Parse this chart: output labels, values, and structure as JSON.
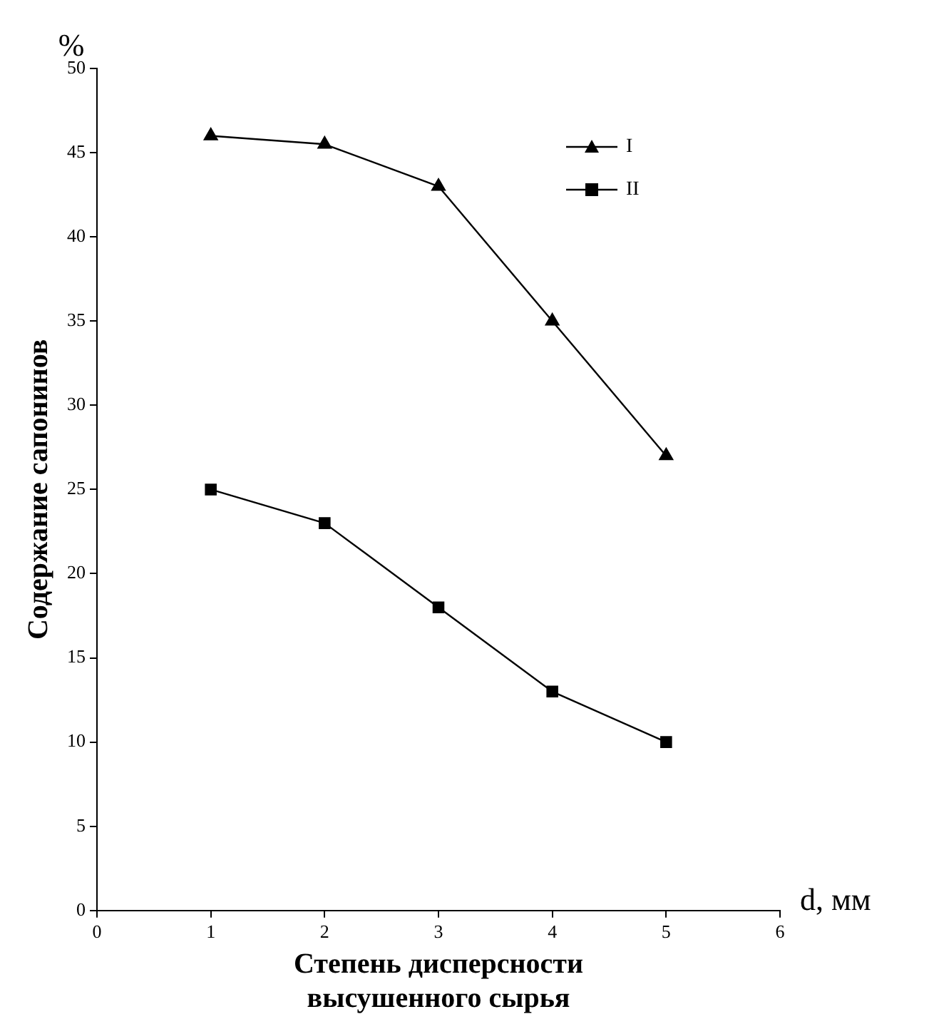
{
  "chart_data": {
    "type": "line",
    "xlabel": "Степень дисперсности высушенного сырья",
    "ylabel": "Содержание сапонинов",
    "annotations": [
      "%",
      "d, мм"
    ],
    "x": [
      1,
      2,
      3,
      4,
      5
    ],
    "series": [
      {
        "name": "I",
        "color": "#000000",
        "marker": "triangle",
        "values": [
          46,
          45.5,
          43,
          35,
          27
        ]
      },
      {
        "name": "II",
        "color": "#000000",
        "marker": "square",
        "values": [
          25,
          23,
          18,
          13,
          10
        ]
      }
    ],
    "xlim": [
      0,
      6
    ],
    "xticks": [
      0,
      1,
      2,
      3,
      4,
      5,
      6
    ],
    "ylim": [
      0,
      50
    ],
    "yticks": [
      0,
      5,
      10,
      15,
      20,
      25,
      30,
      35,
      40,
      45,
      50
    ],
    "grid": false,
    "legend": "top right",
    "line_style": "solid"
  }
}
